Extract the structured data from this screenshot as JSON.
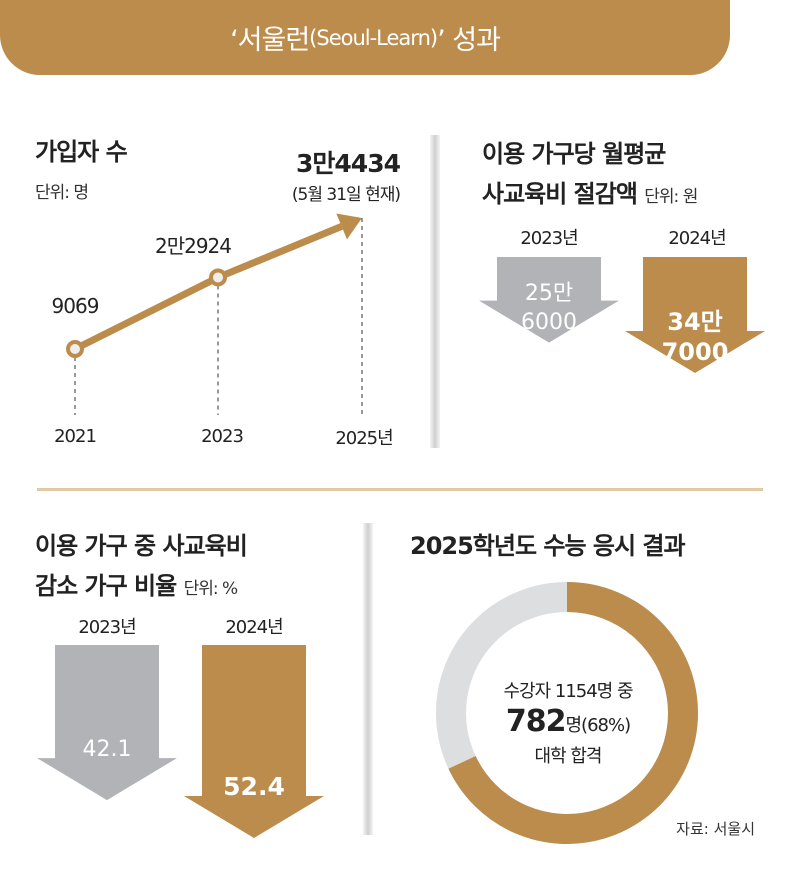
{
  "banner": {
    "title_pre": "‘서울런",
    "title_en": "(Seoul-Learn)",
    "title_post": "’ 성과"
  },
  "colors": {
    "gold": "#BC8C4C",
    "gray": "#B2B3B7",
    "light_gray": "#DDDEE0",
    "divider": "#E0C9A3"
  },
  "chart_data": [
    {
      "type": "line",
      "title": "가입자 수",
      "unit": "단위: 명",
      "categories": [
        "2021",
        "2023",
        "2025년"
      ],
      "values": [
        9069,
        22924,
        34434
      ],
      "data_labels": [
        "9069",
        "2만2924",
        "3만4434"
      ],
      "note": "(5월 31일 현재)"
    },
    {
      "type": "bar",
      "title_lines": [
        "이용 가구당 월평균",
        "사교육비 절감액"
      ],
      "unit": "단위: 원",
      "categories": [
        "2023년",
        "2024년"
      ],
      "values": [
        256000,
        347000
      ],
      "data_labels": [
        [
          "25만",
          "6000"
        ],
        [
          "34만",
          "7000"
        ]
      ]
    },
    {
      "type": "bar",
      "title_lines": [
        "이용 가구 중 사교육비",
        "감소 가구 비율"
      ],
      "unit": "단위: %",
      "categories": [
        "2023년",
        "2024년"
      ],
      "values": [
        42.1,
        52.4
      ],
      "data_labels": [
        "42.1",
        "52.4"
      ]
    },
    {
      "type": "pie",
      "title": "2025학년도 수능 응시 결과",
      "total": 1154,
      "passed": 782,
      "percent": 68,
      "center_text": {
        "line1": "수강자 1154명 중",
        "big": "782",
        "unit": "명(68%)",
        "line3": "대학 합격"
      }
    }
  ],
  "source": "자료: 서울시"
}
